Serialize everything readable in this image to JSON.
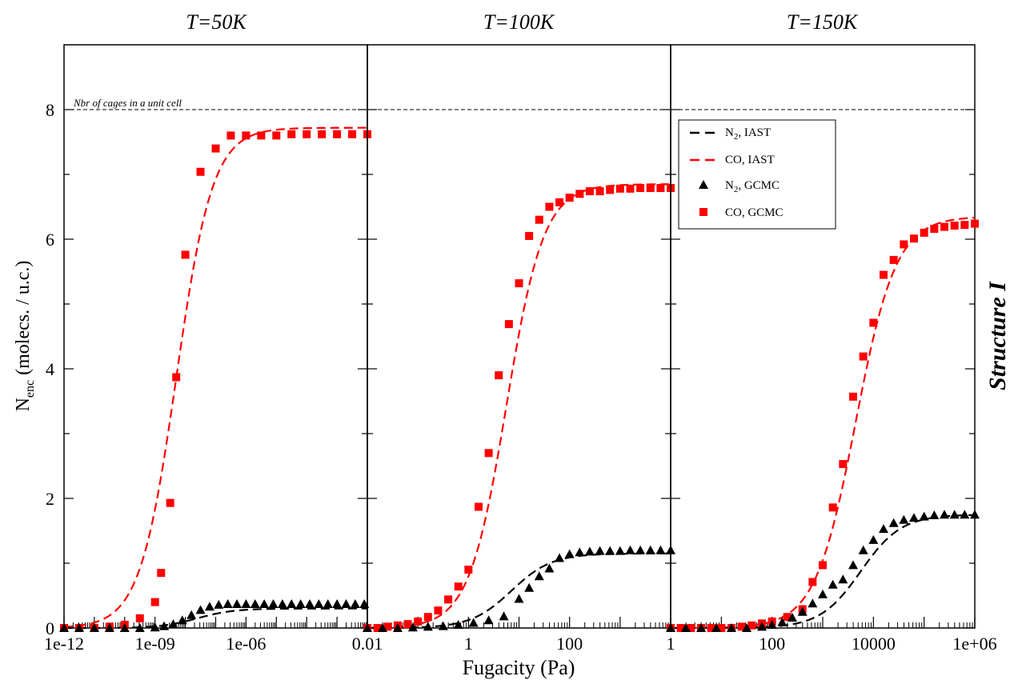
{
  "chart_data": {
    "type": "scatter",
    "ylabel_main": "N",
    "ylabel_sub": "enc",
    "ylabel_rest": " (molecs. / u.c.)",
    "xlabel": "Fugacity (Pa)",
    "side_label": "Structure I",
    "reference_line_label": "Nbr of cages in a unit cell",
    "reference_line_value": 8,
    "ylim": [
      0,
      9
    ],
    "y_ticks": [
      0,
      2,
      4,
      6,
      8
    ],
    "y_tick_labels": [
      "0",
      "2",
      "4",
      "6",
      "8"
    ],
    "x_scale": "log",
    "legend": {
      "placement": "top-left of third panel",
      "entries": [
        {
          "label_main": "N",
          "label_sub": "2",
          "label_rest": ", IAST",
          "style": "dashed",
          "color": "#000000"
        },
        {
          "label_main": "CO, IAST",
          "label_sub": "",
          "label_rest": "",
          "style": "dashed",
          "color": "#ff0000"
        },
        {
          "label_main": "N",
          "label_sub": "2",
          "label_rest": ", GCMC",
          "style": "triangle",
          "color": "#000000"
        },
        {
          "label_main": "CO, GCMC",
          "label_sub": "",
          "label_rest": "",
          "style": "square",
          "color": "#ff0000"
        }
      ]
    },
    "panels": [
      {
        "title": "T=50K",
        "xlim_log10": [
          -12,
          -2
        ],
        "x_tick_labels": [
          {
            "log10": -12,
            "text": "1e-12"
          },
          {
            "log10": -9,
            "text": "1e-09"
          },
          {
            "log10": -6,
            "text": "1e-06"
          },
          {
            "log10": -2,
            "text": "0.01"
          }
        ],
        "series": [
          {
            "name": "CO, IAST",
            "kind": "curve",
            "color": "#ff0000",
            "log10_x0": -8.3,
            "width": 0.6,
            "ymax": 7.72
          },
          {
            "name": "N2, IAST",
            "kind": "curve",
            "color": "#000000",
            "log10_x0": -7.6,
            "width": 0.6,
            "ymax": 0.3
          },
          {
            "name": "CO, GCMC",
            "kind": "points",
            "color": "#ff0000",
            "log10_x": [
              -12.0,
              -11.5,
              -11.0,
              -10.5,
              -10.0,
              -9.5,
              -9.0,
              -8.8,
              -8.5,
              -8.3,
              -8.0,
              -7.5,
              -7.0,
              -6.5,
              -6.0,
              -5.5,
              -5.0,
              -4.5,
              -4.0,
              -3.5,
              -3.0,
              -2.5,
              -2.0
            ],
            "y": [
              0.0,
              0.0,
              0.0,
              0.02,
              0.05,
              0.15,
              0.4,
              0.85,
              1.93,
              3.87,
              5.76,
              7.04,
              7.4,
              7.6,
              7.6,
              7.6,
              7.6,
              7.62,
              7.62,
              7.62,
              7.62,
              7.62,
              7.62
            ]
          },
          {
            "name": "N2, GCMC",
            "kind": "points",
            "color": "#000000",
            "log10_x": [
              -12.0,
              -11.5,
              -11.0,
              -10.5,
              -10.0,
              -9.5,
              -9.0,
              -8.7,
              -8.4,
              -8.1,
              -7.8,
              -7.5,
              -7.2,
              -6.9,
              -6.6,
              -6.3,
              -6.0,
              -5.7,
              -5.4,
              -5.1,
              -4.8,
              -4.5,
              -4.2,
              -3.9,
              -3.6,
              -3.3,
              -3.0,
              -2.7,
              -2.4,
              -2.1
            ],
            "y": [
              0.0,
              0.0,
              0.0,
              0.0,
              0.0,
              0.0,
              0.01,
              0.03,
              0.06,
              0.12,
              0.2,
              0.28,
              0.33,
              0.36,
              0.37,
              0.37,
              0.37,
              0.37,
              0.37,
              0.37,
              0.37,
              0.37,
              0.37,
              0.37,
              0.37,
              0.37,
              0.37,
              0.37,
              0.37,
              0.37
            ]
          }
        ]
      },
      {
        "title": "T=100K",
        "xlim_log10": [
          -2,
          4
        ],
        "x_tick_labels": [
          {
            "log10": 0,
            "text": "1"
          },
          {
            "log10": 2,
            "text": "100"
          }
        ],
        "series": [
          {
            "name": "CO, IAST",
            "kind": "curve",
            "color": "#ff0000",
            "log10_x0": 0.75,
            "width": 0.37,
            "ymax": 6.85
          },
          {
            "name": "N2, IAST",
            "kind": "curve",
            "color": "#000000",
            "log10_x0": 0.85,
            "width": 0.4,
            "ymax": 1.15
          },
          {
            "name": "CO, GCMC",
            "kind": "points",
            "color": "#ff0000",
            "log10_x": [
              -2.0,
              -1.8,
              -1.6,
              -1.4,
              -1.2,
              -1.0,
              -0.8,
              -0.6,
              -0.4,
              -0.2,
              0.0,
              0.2,
              0.4,
              0.6,
              0.8,
              1.0,
              1.2,
              1.4,
              1.6,
              1.8,
              2.0,
              2.2,
              2.4,
              2.6,
              2.8,
              3.0,
              3.2,
              3.4,
              3.6,
              3.8,
              4.0
            ],
            "y": [
              0.0,
              0.0,
              0.02,
              0.04,
              0.06,
              0.1,
              0.17,
              0.27,
              0.44,
              0.64,
              0.9,
              1.87,
              2.7,
              3.9,
              4.69,
              5.32,
              6.05,
              6.3,
              6.5,
              6.57,
              6.64,
              6.7,
              6.74,
              6.74,
              6.76,
              6.78,
              6.78,
              6.79,
              6.79,
              6.79,
              6.79
            ]
          },
          {
            "name": "N2, GCMC",
            "kind": "points",
            "color": "#000000",
            "log10_x": [
              -2.0,
              -1.7,
              -1.4,
              -1.1,
              -0.8,
              -0.5,
              -0.2,
              0.1,
              0.4,
              0.7,
              1.0,
              1.2,
              1.4,
              1.6,
              1.8,
              2.0,
              2.2,
              2.4,
              2.6,
              2.8,
              3.0,
              3.2,
              3.4,
              3.6,
              3.8,
              4.0
            ],
            "y": [
              0.0,
              0.0,
              0.0,
              0.01,
              0.02,
              0.03,
              0.05,
              0.08,
              0.12,
              0.18,
              0.45,
              0.62,
              0.8,
              0.92,
              1.08,
              1.14,
              1.17,
              1.18,
              1.19,
              1.19,
              1.19,
              1.2,
              1.2,
              1.2,
              1.2,
              1.2
            ]
          }
        ]
      },
      {
        "title": "T=150K",
        "xlim_log10": [
          0,
          6
        ],
        "x_tick_labels": [
          {
            "log10": 0,
            "text": "1"
          },
          {
            "log10": 2,
            "text": "100"
          },
          {
            "log10": 4,
            "text": "10000"
          },
          {
            "log10": 6,
            "text": "1e+06"
          }
        ],
        "series": [
          {
            "name": "CO, IAST",
            "kind": "curve",
            "color": "#ff0000",
            "log10_x0": 3.65,
            "width": 0.4,
            "ymax": 6.35
          },
          {
            "name": "N2, IAST",
            "kind": "curve",
            "color": "#000000",
            "log10_x0": 3.75,
            "width": 0.4,
            "ymax": 1.75
          },
          {
            "name": "CO, GCMC",
            "kind": "points",
            "color": "#ff0000",
            "log10_x": [
              0.0,
              0.2,
              0.4,
              0.6,
              0.8,
              1.0,
              1.2,
              1.4,
              1.6,
              1.8,
              2.0,
              2.3,
              2.6,
              2.8,
              3.0,
              3.2,
              3.4,
              3.6,
              3.8,
              4.0,
              4.2,
              4.4,
              4.6,
              4.8,
              5.0,
              5.2,
              5.4,
              5.6,
              5.8,
              6.0
            ],
            "y": [
              0.0,
              0.0,
              0.0,
              0.0,
              0.0,
              0.0,
              0.0,
              0.02,
              0.04,
              0.07,
              0.1,
              0.17,
              0.29,
              0.71,
              0.97,
              1.86,
              2.53,
              3.57,
              4.19,
              4.71,
              5.45,
              5.68,
              5.92,
              6.01,
              6.1,
              6.16,
              6.19,
              6.21,
              6.22,
              6.24
            ]
          },
          {
            "name": "N2, GCMC",
            "kind": "points",
            "color": "#000000",
            "log10_x": [
              0.0,
              0.3,
              0.6,
              0.9,
              1.2,
              1.5,
              1.8,
              2.0,
              2.2,
              2.4,
              2.6,
              2.8,
              3.0,
              3.2,
              3.4,
              3.6,
              3.8,
              4.0,
              4.2,
              4.4,
              4.6,
              4.8,
              5.0,
              5.2,
              5.4,
              5.6,
              5.8,
              6.0
            ],
            "y": [
              0.0,
              0.0,
              0.0,
              0.0,
              0.0,
              0.0,
              0.02,
              0.05,
              0.09,
              0.16,
              0.25,
              0.38,
              0.52,
              0.67,
              0.75,
              0.97,
              1.2,
              1.36,
              1.53,
              1.62,
              1.67,
              1.7,
              1.72,
              1.74,
              1.75,
              1.75,
              1.75,
              1.75
            ]
          }
        ]
      }
    ]
  }
}
